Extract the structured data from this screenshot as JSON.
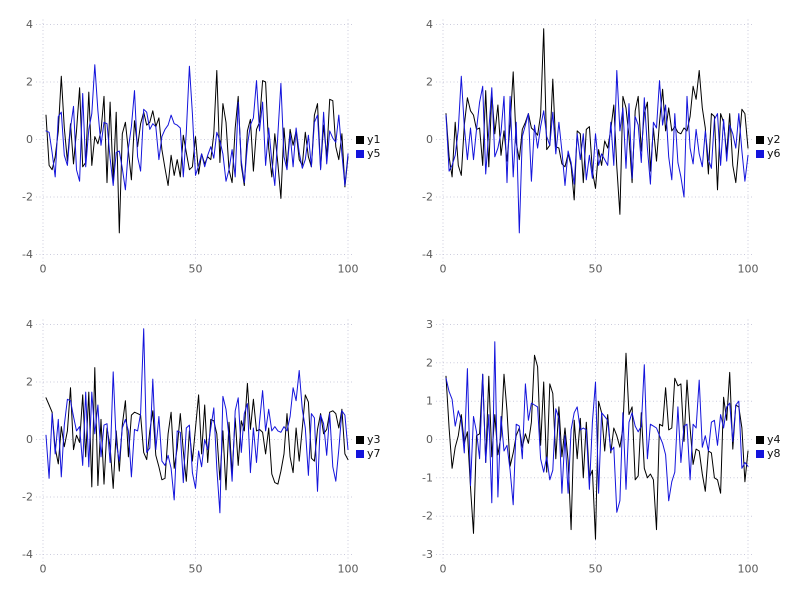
{
  "page": {
    "background_color": "#ffffff"
  },
  "styles": {
    "grid_color": "#ccccdd",
    "tick_label_color": "#5a5a5a",
    "legend_text_color": "#111111",
    "series_black": "#000000",
    "series_blue": "#1414dc"
  },
  "x_values": [
    1,
    2,
    3,
    4,
    5,
    6,
    7,
    8,
    9,
    10,
    11,
    12,
    13,
    14,
    15,
    16,
    17,
    18,
    19,
    20,
    21,
    22,
    23,
    24,
    25,
    26,
    27,
    28,
    29,
    30,
    31,
    32,
    33,
    34,
    35,
    36,
    37,
    38,
    39,
    40,
    41,
    42,
    43,
    44,
    45,
    46,
    47,
    48,
    49,
    50,
    51,
    52,
    53,
    54,
    55,
    56,
    57,
    58,
    59,
    60,
    61,
    62,
    63,
    64,
    65,
    66,
    67,
    68,
    69,
    70,
    71,
    72,
    73,
    74,
    75,
    76,
    77,
    78,
    79,
    80,
    81,
    82,
    83,
    84,
    85,
    86,
    87,
    88,
    89,
    90,
    91,
    92,
    93,
    94,
    95,
    96,
    97,
    98,
    99,
    100
  ],
  "chart_data": [
    {
      "type": "line",
      "position": "top-left",
      "title": "",
      "xlabel": "",
      "ylabel": "",
      "xlim": [
        0,
        100
      ],
      "ylim": [
        -4,
        4
      ],
      "xticks": [
        0,
        50,
        100
      ],
      "yticks": [
        -4,
        -2,
        0,
        2,
        4
      ],
      "grid": "dotted",
      "legend_position": "right-center",
      "series": [
        {
          "name": "y1",
          "color": "#000000",
          "values": [
            0.85,
            -0.9,
            -1.05,
            -0.6,
            0.3,
            2.2,
            0.4,
            -0.75,
            0.55,
            -0.85,
            0.3,
            1.8,
            -0.95,
            -0.8,
            1.65,
            -0.9,
            0.1,
            -0.15,
            0.3,
            1.5,
            -1.5,
            1.3,
            -1.45,
            0.95,
            -3.25,
            0.2,
            0.6,
            -0.4,
            -1.4,
            0.65,
            -0.25,
            0.55,
            0.95,
            0.5,
            0.6,
            1.0,
            0.45,
            0.75,
            -0.35,
            -1.0,
            -1.6,
            -0.55,
            -1.25,
            -0.7,
            -1.3,
            0.15,
            -0.45,
            -1.05,
            -0.95,
            0.1,
            -1.2,
            -0.5,
            -0.85,
            -0.6,
            -0.7,
            0.2,
            2.4,
            -0.8,
            1.25,
            0.6,
            -1.05,
            -1.5,
            0.4,
            1.5,
            -0.9,
            -1.6,
            0.3,
            0.7,
            -1.1,
            0.35,
            0.6,
            2.05,
            2.0,
            -0.3,
            -1.3,
            0.2,
            -0.85,
            -2.05,
            0.4,
            -0.95,
            0.35,
            -0.2,
            0.3,
            -0.7,
            -0.9,
            0.25,
            -0.6,
            -0.95,
            0.85,
            1.25,
            -1.0,
            0.5,
            -0.6,
            1.4,
            1.35,
            -0.25,
            -0.7,
            0.2,
            -1.65,
            -0.6
          ]
        },
        {
          "name": "y5",
          "color": "#1414dc",
          "values": [
            0.3,
            0.25,
            -0.45,
            -1.3,
            0.8,
            0.95,
            -0.55,
            -0.9,
            0.4,
            1.15,
            -1.05,
            -1.45,
            1.6,
            -0.95,
            0.35,
            0.9,
            2.6,
            1.0,
            -0.2,
            0.6,
            0.55,
            -0.65,
            -1.6,
            -0.45,
            -0.4,
            -1.0,
            -1.75,
            -0.3,
            0.45,
            1.7,
            -0.6,
            -1.1,
            1.05,
            0.95,
            0.35,
            0.55,
            0.45,
            -0.7,
            0.1,
            0.35,
            0.5,
            0.85,
            0.55,
            0.5,
            0.4,
            -1.3,
            0.25,
            2.55,
            0.9,
            -1.25,
            -0.9,
            -0.5,
            -0.95,
            -0.55,
            -0.25,
            -0.65,
            0.25,
            -0.05,
            -0.5,
            -1.45,
            -1.05,
            -0.35,
            -1.3,
            1.3,
            -0.75,
            -1.5,
            -0.2,
            0.5,
            0.75,
            2.05,
            0.3,
            1.3,
            -0.9,
            0.4,
            -0.75,
            -1.6,
            0.2,
            1.95,
            -0.6,
            -1.05,
            0.2,
            -0.95,
            0.4,
            -0.45,
            -1.0,
            -0.7,
            0.15,
            -0.95,
            0.6,
            0.85,
            -1.05,
            0.95,
            -0.85,
            0.3,
            0.05,
            -0.1,
            0.85,
            -0.5,
            -1.6,
            -0.5
          ]
        }
      ]
    },
    {
      "type": "line",
      "position": "top-right",
      "title": "",
      "xlabel": "",
      "ylabel": "",
      "xlim": [
        0,
        100
      ],
      "ylim": [
        -4,
        4
      ],
      "xticks": [
        0,
        50,
        100
      ],
      "yticks": [
        -4,
        -2,
        0,
        2,
        4
      ],
      "grid": "dotted",
      "legend_position": "right-center",
      "series": [
        {
          "name": "y2",
          "color": "#000000",
          "values": [
            0.9,
            -0.6,
            -1.3,
            0.6,
            -0.9,
            -1.25,
            0.5,
            1.45,
            1.0,
            0.85,
            0.35,
            0.4,
            -0.9,
            1.7,
            -0.95,
            1.6,
            0.2,
            1.2,
            -0.55,
            0.3,
            -0.75,
            0.5,
            2.35,
            -0.1,
            -0.7,
            0.35,
            0.6,
            0.9,
            0.4,
            0.3,
            0.15,
            0.85,
            3.85,
            -0.35,
            -0.2,
            2.1,
            -0.25,
            -0.3,
            -0.85,
            -0.95,
            -0.5,
            -0.9,
            -2.1,
            0.3,
            0.2,
            -1.5,
            0.35,
            0.45,
            -1.1,
            -1.7,
            -0.35,
            -0.9,
            -0.05,
            -0.3,
            0.35,
            1.2,
            -0.95,
            -2.6,
            1.5,
            1.1,
            0.1,
            -1.5,
            1.0,
            1.5,
            -0.4,
            0.9,
            1.3,
            -1.1,
            0.4,
            -0.75,
            0.6,
            1.75,
            0.3,
            1.1,
            0.3,
            0.45,
            0.25,
            0.2,
            0.4,
            0.3,
            0.8,
            1.85,
            1.4,
            2.4,
            1.1,
            0.4,
            -1.2,
            0.9,
            0.8,
            -1.75,
            0.9,
            0.6,
            -0.5,
            0.9,
            -0.9,
            -1.5,
            -0.3,
            1.05,
            0.9,
            -0.3
          ]
        },
        {
          "name": "y6",
          "color": "#1414dc",
          "values": [
            0.85,
            -1.1,
            -0.9,
            -0.55,
            0.35,
            2.2,
            0.45,
            -0.7,
            0.4,
            -0.7,
            0.35,
            1.3,
            1.85,
            -1.2,
            0.3,
            1.8,
            -0.6,
            -0.3,
            0.25,
            1.5,
            -1.5,
            1.5,
            -1.3,
            0.6,
            -3.25,
            0.1,
            0.5,
            0.9,
            -1.45,
            0.5,
            -0.3,
            0.45,
            1.0,
            0.1,
            -0.2,
            0.95,
            -0.5,
            0.6,
            -0.4,
            -1.6,
            -0.4,
            -0.8,
            -1.55,
            0.2,
            -0.7,
            0.2,
            -1.4,
            -0.55,
            -1.35,
            0.2,
            -0.9,
            -0.5,
            -0.7,
            -0.9,
            0.6,
            -0.9,
            2.4,
            0.3,
            1.1,
            -1.0,
            1.25,
            -1.35,
            0.8,
            0.5,
            -0.8,
            1.45,
            -0.3,
            -1.55,
            0.6,
            0.4,
            2.05,
            0.5,
            1.2,
            -0.6,
            -1.4,
            0.9,
            -0.8,
            -1.3,
            -2.0,
            1.5,
            -0.3,
            -0.85,
            0.35,
            -0.5,
            -0.95,
            0.3,
            -0.7,
            -1.0,
            0.7,
            0.9,
            -0.9,
            0.7,
            -0.75,
            0.5,
            0.2,
            -0.3,
            0.9,
            -0.4,
            -1.45,
            -0.55
          ]
        }
      ]
    },
    {
      "type": "line",
      "position": "bottom-left",
      "title": "",
      "xlabel": "",
      "ylabel": "",
      "xlim": [
        0,
        100
      ],
      "ylim": [
        -4,
        4
      ],
      "xticks": [
        0,
        50,
        100
      ],
      "yticks": [
        -4,
        -2,
        0,
        2,
        4
      ],
      "grid": "dotted",
      "legend_position": "right-center",
      "series": [
        {
          "name": "y3",
          "color": "#000000",
          "values": [
            1.45,
            1.2,
            0.95,
            -0.3,
            -0.85,
            0.45,
            -0.25,
            0.3,
            1.8,
            -0.35,
            0.15,
            -0.1,
            1.55,
            -0.6,
            1.65,
            -1.65,
            2.5,
            -1.6,
            0.7,
            -1.55,
            0.4,
            -0.25,
            -1.7,
            0.3,
            -1.1,
            0.5,
            1.35,
            -0.6,
            0.85,
            0.95,
            0.9,
            0.85,
            -0.45,
            -0.7,
            0.3,
            1.0,
            -0.55,
            -0.95,
            -1.4,
            -1.35,
            0.2,
            0.95,
            -1.0,
            -0.3,
            0.9,
            -0.4,
            -1.45,
            0.3,
            -0.75,
            0.4,
            1.55,
            -0.5,
            1.2,
            -0.8,
            0.7,
            0.65,
            0.2,
            -1.4,
            0.3,
            -1.75,
            0.6,
            -1.2,
            0.75,
            -0.9,
            0.65,
            0.3,
            1.95,
            0.35,
            1.4,
            0.3,
            0.35,
            0.25,
            -0.5,
            0.4,
            -1.2,
            -1.5,
            -1.55,
            -1.1,
            -0.5,
            0.9,
            -0.6,
            -1.15,
            0.4,
            -0.75,
            0.4,
            1.55,
            1.3,
            -0.65,
            -0.75,
            0.35,
            0.9,
            0.2,
            0.35,
            0.95,
            1.0,
            0.9,
            0.4,
            1.05,
            -0.5,
            -0.7
          ]
        },
        {
          "name": "y7",
          "color": "#1414dc",
          "values": [
            0.15,
            -1.35,
            0.9,
            -0.5,
            0.7,
            -1.3,
            0.5,
            1.4,
            1.35,
            0.8,
            0.3,
            0.45,
            -0.9,
            1.65,
            -0.95,
            1.65,
            0.2,
            1.2,
            -0.6,
            0.5,
            0.55,
            -0.8,
            2.35,
            -0.1,
            -0.75,
            0.4,
            0.7,
            0.3,
            -1.3,
            0.35,
            0.3,
            0.9,
            3.85,
            -0.45,
            -0.3,
            2.1,
            -0.35,
            0.8,
            -0.75,
            -0.9,
            -0.55,
            -1.0,
            -2.1,
            0.3,
            0.25,
            -1.5,
            0.4,
            0.5,
            -1.15,
            -1.7,
            -0.4,
            -0.95,
            0.0,
            -0.35,
            0.4,
            1.1,
            -1.0,
            -2.55,
            1.5,
            1.05,
            0.1,
            -1.45,
            1.0,
            1.45,
            -0.45,
            0.9,
            1.25,
            -1.15,
            0.4,
            -0.8,
            0.6,
            1.7,
            0.3,
            1.05,
            0.3,
            0.45,
            0.3,
            0.25,
            0.45,
            0.3,
            0.8,
            1.8,
            1.35,
            2.4,
            1.05,
            0.4,
            -1.25,
            0.9,
            0.75,
            -1.8,
            0.85,
            0.55,
            -0.55,
            0.9,
            -0.95,
            -1.45,
            -0.35,
            1.0,
            0.85,
            -0.35
          ]
        }
      ]
    },
    {
      "type": "line",
      "position": "bottom-right",
      "title": "",
      "xlabel": "",
      "ylabel": "",
      "xlim": [
        0,
        100
      ],
      "ylim": [
        -3,
        3
      ],
      "xticks": [
        0,
        50,
        100
      ],
      "yticks": [
        -3,
        -2,
        -1,
        0,
        1,
        2,
        3
      ],
      "grid": "dotted",
      "legend_position": "right-center",
      "series": [
        {
          "name": "y4",
          "color": "#000000",
          "values": [
            1.65,
            0.3,
            -0.75,
            -0.2,
            0.1,
            0.65,
            -0.1,
            0.2,
            -1.25,
            -2.45,
            0.1,
            0.15,
            1.7,
            -0.6,
            1.65,
            -0.45,
            0.65,
            -0.4,
            0.1,
            1.7,
            0.75,
            -0.7,
            -0.35,
            0.1,
            0.3,
            -0.2,
            0.15,
            -0.1,
            0.45,
            2.2,
            1.9,
            -0.15,
            1.5,
            -0.85,
            1.45,
            1.2,
            -0.5,
            0.85,
            -0.45,
            0.3,
            -0.55,
            -2.35,
            0.5,
            -0.5,
            0.55,
            -1.0,
            0.45,
            -1.0,
            -0.8,
            -2.6,
            1.0,
            0.7,
            -0.3,
            0.65,
            -0.35,
            0.3,
            0.1,
            -0.2,
            0.3,
            2.25,
            0.65,
            0.85,
            -1.05,
            -0.95,
            0.7,
            -0.75,
            -1.0,
            -0.9,
            -1.05,
            -2.35,
            0.4,
            0.35,
            1.35,
            0.25,
            0.3,
            1.6,
            1.4,
            1.45,
            -0.05,
            1.55,
            0.3,
            -0.65,
            -0.25,
            -0.3,
            -0.9,
            -1.35,
            -0.3,
            -0.35,
            -1.0,
            -1.05,
            -1.4,
            1.1,
            0.5,
            1.75,
            -0.25,
            0.9,
            0.85,
            0.3,
            -1.1,
            -0.3
          ]
        },
        {
          "name": "y8",
          "color": "#1414dc",
          "values": [
            1.6,
            1.25,
            1.05,
            0.35,
            0.75,
            0.5,
            -0.35,
            1.85,
            -1.2,
            0.6,
            0.2,
            -0.5,
            1.7,
            -0.6,
            0.65,
            -1.65,
            2.55,
            -1.5,
            0.6,
            -0.3,
            -0.15,
            -0.8,
            -1.7,
            0.4,
            0.35,
            -0.5,
            1.45,
            0.5,
            0.95,
            0.9,
            0.85,
            -0.5,
            -0.85,
            -0.45,
            -1.05,
            -0.8,
            0.8,
            0.55,
            -1.4,
            0.1,
            -1.4,
            0.25,
            0.7,
            0.85,
            0.25,
            0.3,
            0.25,
            -1.3,
            0.45,
            1.5,
            -1.4,
            0.7,
            0.6,
            0.5,
            -0.3,
            -0.2,
            -1.9,
            -1.6,
            0.7,
            -1.3,
            0.45,
            0.7,
            0.35,
            0.2,
            0.35,
            1.95,
            -0.5,
            0.4,
            0.35,
            0.3,
            0.1,
            -0.1,
            -0.4,
            -1.6,
            -1.1,
            -0.85,
            0.85,
            -0.6,
            0.35,
            0.4,
            -1.05,
            0.4,
            0.3,
            1.55,
            -0.2,
            0.1,
            -0.3,
            0.45,
            0.5,
            -0.15,
            0.65,
            0.3,
            0.85,
            0.95,
            -0.05,
            0.9,
            1.0,
            -0.75,
            -0.6,
            -0.7
          ]
        }
      ]
    }
  ]
}
